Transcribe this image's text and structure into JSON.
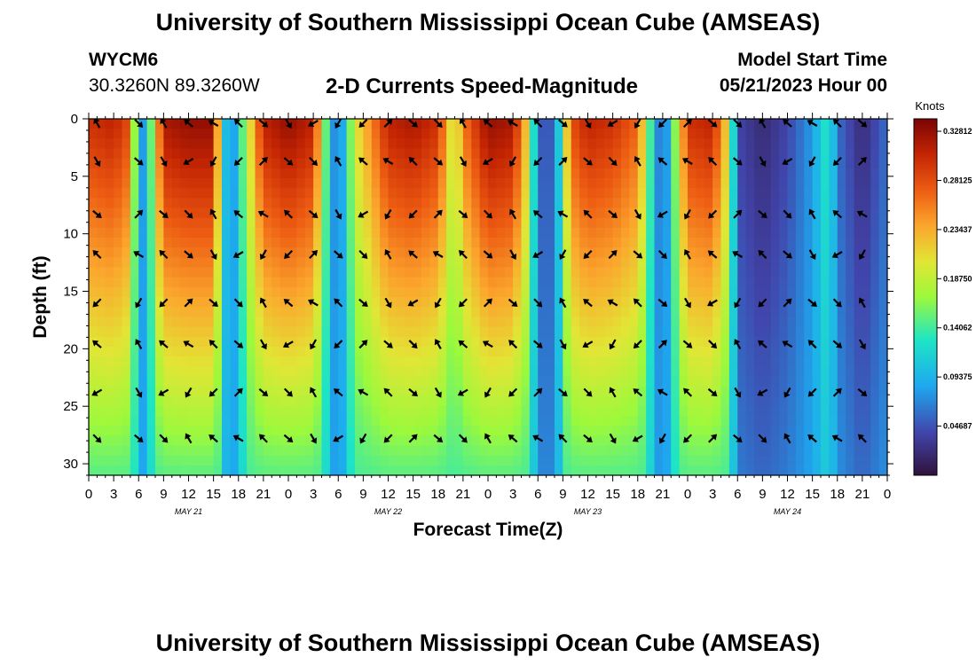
{
  "header": {
    "title": "University of Southern Mississippi Ocean Cube (AMSEAS)",
    "station": "WYCM6",
    "location": "30.3260N  89.3260W",
    "subtitle": "2-D Currents Speed-Magnitude",
    "model_start_label": "Model Start Time",
    "model_start_value": "05/21/2023 Hour 00",
    "footer_title": "University of Southern Mississippi Ocean Cube (AMSEAS)"
  },
  "chart_data": {
    "type": "heatmap",
    "title": "2-D Currents Speed-Magnitude",
    "xlabel": "Forecast Time(Z)",
    "ylabel": "Depth (ft)",
    "xlim": [
      0,
      96
    ],
    "ylim": [
      31,
      0
    ],
    "x_tick_hours": [
      0,
      3,
      6,
      9,
      12,
      15,
      18,
      21,
      24,
      27,
      30,
      33,
      36,
      39,
      42,
      45,
      48,
      51,
      54,
      57,
      60,
      63,
      66,
      69,
      72,
      75,
      78,
      81,
      84,
      87,
      90,
      93,
      96
    ],
    "x_tick_labels": [
      "0",
      "3",
      "6",
      "9",
      "12",
      "15",
      "18",
      "21",
      "0",
      "3",
      "6",
      "9",
      "12",
      "15",
      "18",
      "21",
      "0",
      "3",
      "6",
      "9",
      "12",
      "15",
      "18",
      "21",
      "0",
      "3",
      "6",
      "9",
      "12",
      "15",
      "18",
      "21",
      "0"
    ],
    "day_labels": [
      {
        "hour": 12,
        "label": "MAY 21"
      },
      {
        "hour": 36,
        "label": "MAY 22"
      },
      {
        "hour": 60,
        "label": "MAY 23"
      },
      {
        "hour": 84,
        "label": "MAY 24"
      }
    ],
    "y_ticks": [
      0,
      5,
      10,
      15,
      20,
      25,
      30
    ],
    "y_tick_labels": [
      "0",
      "5",
      "10",
      "15",
      "20",
      "25",
      "30"
    ],
    "colorbar": {
      "unit": "Knots",
      "min": 0.0,
      "max": 0.34,
      "tick_values": [
        0.04687,
        0.09375,
        0.14062,
        0.1875,
        0.23437,
        0.28125,
        0.32812
      ],
      "tick_labels": [
        "0.04687",
        "0.09375",
        "0.14062",
        "0.18750",
        "0.23437",
        "0.28125",
        "0.32812"
      ]
    },
    "arrow_depths_ft": [
      0,
      3.7,
      8.3,
      11.8,
      16,
      19.6,
      23.8,
      27.8
    ],
    "arrow_hours": [
      1,
      6,
      9,
      12,
      15,
      18,
      21,
      24,
      27,
      30,
      33,
      36,
      39,
      42,
      45,
      48,
      51,
      54,
      57,
      60,
      63,
      66,
      69,
      72,
      75,
      78,
      81,
      84,
      87,
      90,
      93
    ],
    "speed_knots_at_surface_by_hour": [
      [
        0,
        0.3
      ],
      [
        3,
        0.31
      ],
      [
        5,
        0.28
      ],
      [
        6,
        0.06
      ],
      [
        7,
        0.1
      ],
      [
        9,
        0.32
      ],
      [
        12,
        0.33
      ],
      [
        15,
        0.33
      ],
      [
        16,
        0.15
      ],
      [
        17,
        0.05
      ],
      [
        18,
        0.12
      ],
      [
        21,
        0.31
      ],
      [
        24,
        0.33
      ],
      [
        27,
        0.31
      ],
      [
        29,
        0.1
      ],
      [
        30,
        0.05
      ],
      [
        32,
        0.2
      ],
      [
        36,
        0.31
      ],
      [
        39,
        0.32
      ],
      [
        42,
        0.3
      ],
      [
        44,
        0.18
      ],
      [
        45,
        0.26
      ],
      [
        48,
        0.33
      ],
      [
        51,
        0.32
      ],
      [
        53,
        0.2
      ],
      [
        54,
        0.05
      ],
      [
        56,
        0.05
      ],
      [
        58,
        0.28
      ],
      [
        60,
        0.31
      ],
      [
        63,
        0.3
      ],
      [
        66,
        0.27
      ],
      [
        68,
        0.1
      ],
      [
        69,
        0.04
      ],
      [
        70,
        0.12
      ],
      [
        72,
        0.3
      ],
      [
        75,
        0.31
      ],
      [
        77,
        0.2
      ],
      [
        78,
        0.04
      ],
      [
        81,
        0.02
      ],
      [
        84,
        0.04
      ],
      [
        87,
        0.08
      ],
      [
        89,
        0.14
      ],
      [
        90,
        0.06
      ],
      [
        93,
        0.02
      ],
      [
        96,
        0.06
      ]
    ]
  }
}
